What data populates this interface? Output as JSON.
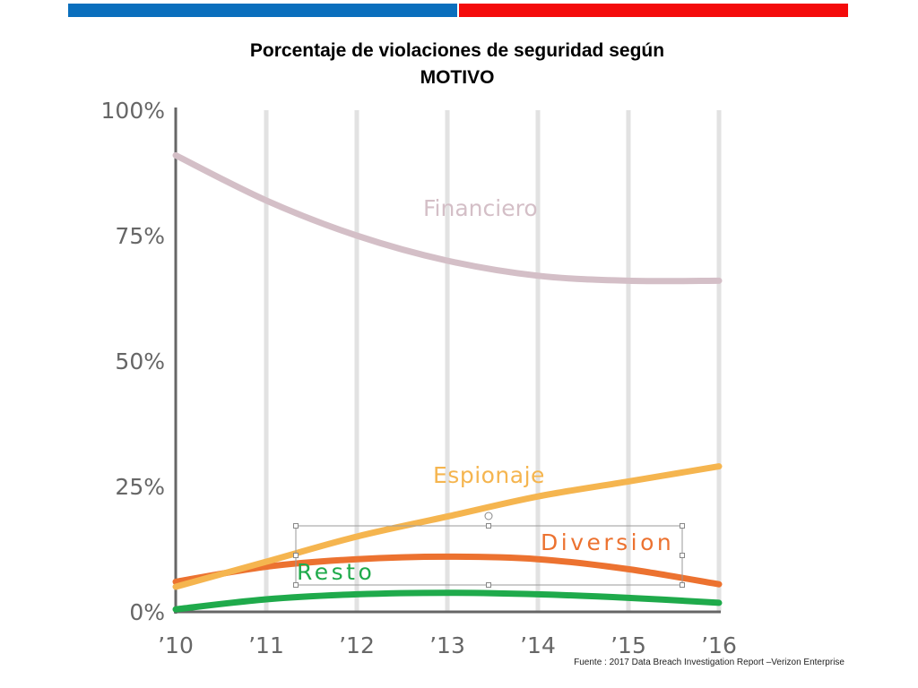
{
  "header": {
    "title_line1": "Porcentaje de violaciones de seguridad según",
    "title_line2": "MOTIVO"
  },
  "source": "Fuente : 2017 Data Breach Investigation Report –Verizon Enterprise",
  "colors": {
    "bar_left": "#0a6fbd",
    "bar_right": "#f40b0b",
    "financiero": "#d4bfc7",
    "espionaje": "#f5b54f",
    "diversion": "#ec7230",
    "resto": "#1faa4b",
    "grid": "#e2e2e2",
    "axis": "#666666"
  },
  "chart_data": {
    "type": "line",
    "title": "Porcentaje de violaciones de seguridad según MOTIVO",
    "x": [
      "’10",
      "’11",
      "’12",
      "’13",
      "’14",
      "’15",
      "’16"
    ],
    "y_ticks": [
      "0%",
      "25%",
      "50%",
      "75%",
      "100%"
    ],
    "ylim": [
      0,
      100
    ],
    "grid": "vertical",
    "series": [
      {
        "name": "Financiero",
        "values": [
          91,
          82,
          75,
          70,
          67,
          66,
          66
        ]
      },
      {
        "name": "Espionaje",
        "values": [
          5,
          10,
          15,
          19,
          23,
          26,
          29
        ]
      },
      {
        "name": "Diversion",
        "values": [
          6,
          9,
          10.5,
          11,
          10.5,
          8.5,
          5.5
        ]
      },
      {
        "name": "Resto",
        "values": [
          0.5,
          2.5,
          3.5,
          3.8,
          3.5,
          2.8,
          1.8
        ]
      }
    ]
  }
}
